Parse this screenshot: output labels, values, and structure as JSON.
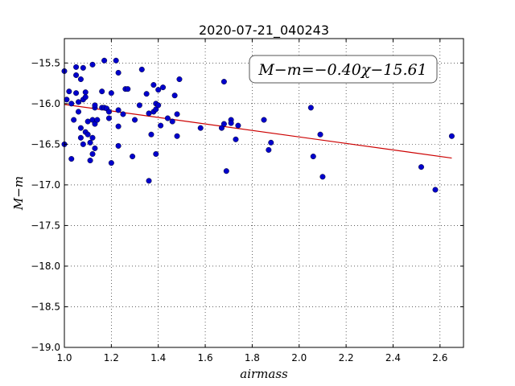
{
  "chart_data": {
    "type": "scatter",
    "title": "2020-07-21_040243",
    "xlabel": "airmass",
    "ylabel": "M−m",
    "xlim": [
      1.0,
      2.7
    ],
    "ylim": [
      -19.0,
      -15.2
    ],
    "x_ticks": [
      "1.0",
      "1.2",
      "1.4",
      "1.6",
      "1.8",
      "2.0",
      "2.2",
      "2.4",
      "2.6"
    ],
    "x_tick_values": [
      1.0,
      1.2,
      1.4,
      1.6,
      1.8,
      2.0,
      2.2,
      2.4,
      2.6
    ],
    "y_ticks": [
      "−15.5",
      "−16.0",
      "−16.5",
      "−17.0",
      "−17.5",
      "−18.0",
      "−18.5",
      "−19.0"
    ],
    "y_tick_values": [
      -15.5,
      -16.0,
      -16.5,
      -17.0,
      -17.5,
      -18.0,
      -18.5,
      -19.0
    ],
    "grid": true,
    "annotation": "M−m=−0.40χ−15.61",
    "point_color": "#0000cc",
    "fit_color": "#cc0000",
    "fit": {
      "slope": -0.4,
      "intercept": -15.61,
      "x_range": [
        1.0,
        2.65
      ]
    },
    "points": [
      [
        1.0,
        -15.6
      ],
      [
        1.0,
        -16.5
      ],
      [
        1.01,
        -15.95
      ],
      [
        1.02,
        -15.85
      ],
      [
        1.03,
        -16.0
      ],
      [
        1.03,
        -16.68
      ],
      [
        1.04,
        -16.2
      ],
      [
        1.05,
        -15.87
      ],
      [
        1.05,
        -15.55
      ],
      [
        1.05,
        -15.65
      ],
      [
        1.06,
        -16.1
      ],
      [
        1.06,
        -15.98
      ],
      [
        1.07,
        -16.3
      ],
      [
        1.07,
        -16.42
      ],
      [
        1.07,
        -15.7
      ],
      [
        1.08,
        -15.56
      ],
      [
        1.08,
        -15.95
      ],
      [
        1.08,
        -16.5
      ],
      [
        1.09,
        -16.35
      ],
      [
        1.09,
        -15.86
      ],
      [
        1.09,
        -15.92
      ],
      [
        1.1,
        -16.22
      ],
      [
        1.1,
        -16.38
      ],
      [
        1.11,
        -16.7
      ],
      [
        1.11,
        -16.48
      ],
      [
        1.12,
        -16.62
      ],
      [
        1.12,
        -16.42
      ],
      [
        1.12,
        -16.2
      ],
      [
        1.12,
        -15.52
      ],
      [
        1.13,
        -16.05
      ],
      [
        1.13,
        -16.25
      ],
      [
        1.13,
        -16.55
      ],
      [
        1.13,
        -16.02
      ],
      [
        1.14,
        -16.2
      ],
      [
        1.16,
        -15.85
      ],
      [
        1.16,
        -16.05
      ],
      [
        1.17,
        -15.47
      ],
      [
        1.17,
        -16.05
      ],
      [
        1.18,
        -16.06
      ],
      [
        1.19,
        -16.1
      ],
      [
        1.19,
        -16.18
      ],
      [
        1.2,
        -15.87
      ],
      [
        1.2,
        -16.73
      ],
      [
        1.22,
        -15.47
      ],
      [
        1.23,
        -15.62
      ],
      [
        1.23,
        -16.08
      ],
      [
        1.23,
        -16.28
      ],
      [
        1.23,
        -16.52
      ],
      [
        1.25,
        -16.13
      ],
      [
        1.26,
        -15.82
      ],
      [
        1.27,
        -15.82
      ],
      [
        1.29,
        -16.65
      ],
      [
        1.3,
        -16.2
      ],
      [
        1.32,
        -16.02
      ],
      [
        1.33,
        -15.58
      ],
      [
        1.35,
        -15.88
      ],
      [
        1.36,
        -16.95
      ],
      [
        1.36,
        -16.12
      ],
      [
        1.37,
        -16.38
      ],
      [
        1.38,
        -15.77
      ],
      [
        1.38,
        -16.1
      ],
      [
        1.39,
        -16.0
      ],
      [
        1.39,
        -16.07
      ],
      [
        1.39,
        -16.62
      ],
      [
        1.4,
        -16.02
      ],
      [
        1.4,
        -15.83
      ],
      [
        1.41,
        -16.27
      ],
      [
        1.42,
        -15.8
      ],
      [
        1.44,
        -16.18
      ],
      [
        1.46,
        -16.22
      ],
      [
        1.47,
        -15.9
      ],
      [
        1.48,
        -16.13
      ],
      [
        1.48,
        -16.4
      ],
      [
        1.49,
        -15.7
      ],
      [
        1.58,
        -16.3
      ],
      [
        1.67,
        -16.3
      ],
      [
        1.68,
        -15.73
      ],
      [
        1.68,
        -16.25
      ],
      [
        1.69,
        -16.83
      ],
      [
        1.71,
        -16.2
      ],
      [
        1.71,
        -16.24
      ],
      [
        1.73,
        -16.44
      ],
      [
        1.74,
        -16.27
      ],
      [
        1.85,
        -16.2
      ],
      [
        1.87,
        -16.57
      ],
      [
        1.88,
        -16.48
      ],
      [
        2.05,
        -16.05
      ],
      [
        2.06,
        -16.65
      ],
      [
        2.09,
        -16.38
      ],
      [
        2.1,
        -16.9
      ],
      [
        2.52,
        -16.78
      ],
      [
        2.58,
        -17.06
      ],
      [
        2.65,
        -16.4
      ]
    ]
  }
}
